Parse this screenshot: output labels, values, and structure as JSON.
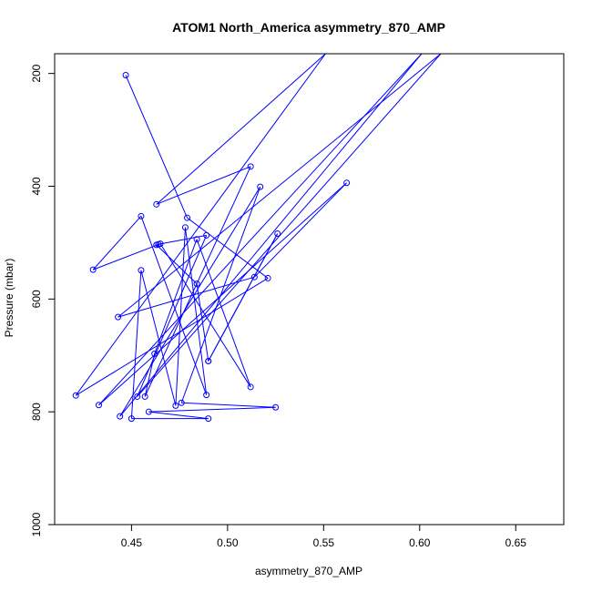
{
  "chart_data": {
    "type": "line",
    "title": "ATOM1 North_America asymmetry_870_AMP",
    "xlabel": "asymmetry_870_AMP",
    "ylabel": "Pressure (mbar)",
    "xlim": [
      0.41,
      0.675
    ],
    "ylim": [
      1000,
      165
    ],
    "y_inverted": true,
    "grid": false,
    "xticks": [
      0.45,
      0.5,
      0.55,
      0.6,
      0.65
    ],
    "xtick_labels": [
      "0.45",
      "0.50",
      "0.55",
      "0.60",
      "0.65"
    ],
    "yticks": [
      200,
      400,
      600,
      800,
      1000
    ],
    "ytick_labels": [
      "200",
      "400",
      "600",
      "800",
      "1000"
    ],
    "series": [
      {
        "color": "#0000ff",
        "marker": "open-circle",
        "points": [
          {
            "x": 0.447,
            "y": 203
          },
          {
            "x": 0.479,
            "y": 456
          },
          {
            "x": 0.521,
            "y": 563
          },
          {
            "x": 0.421,
            "y": 771
          },
          {
            "x": 0.551,
            "y": 165
          },
          {
            "x": 0.463,
            "y": 432
          },
          {
            "x": 0.512,
            "y": 365
          },
          {
            "x": 0.457,
            "y": 773
          },
          {
            "x": 0.462,
            "y": 697
          },
          {
            "x": 0.484,
            "y": 494
          },
          {
            "x": 0.512,
            "y": 756
          },
          {
            "x": 0.465,
            "y": 502
          },
          {
            "x": 0.43,
            "y": 548
          },
          {
            "x": 0.455,
            "y": 453
          },
          {
            "x": 0.489,
            "y": 770
          },
          {
            "x": 0.478,
            "y": 473
          },
          {
            "x": 0.473,
            "y": 789
          },
          {
            "x": 0.455,
            "y": 549
          },
          {
            "x": 0.45,
            "y": 812
          },
          {
            "x": 0.49,
            "y": 812
          },
          {
            "x": 0.459,
            "y": 800
          },
          {
            "x": 0.525,
            "y": 792
          },
          {
            "x": 0.476,
            "y": 784
          },
          {
            "x": 0.517,
            "y": 401
          },
          {
            "x": 0.444,
            "y": 808
          },
          {
            "x": 0.601,
            "y": 165
          },
          {
            "x": 0.433,
            "y": 788
          },
          {
            "x": 0.562,
            "y": 394
          },
          {
            "x": 0.514,
            "y": 561
          },
          {
            "x": 0.443,
            "y": 632
          },
          {
            "x": 0.611,
            "y": 165
          },
          {
            "x": 0.453,
            "y": 773
          },
          {
            "x": 0.489,
            "y": 487
          },
          {
            "x": 0.464,
            "y": 503
          },
          {
            "x": 0.463,
            "y": 504
          },
          {
            "x": 0.484,
            "y": 573
          },
          {
            "x": 0.49,
            "y": 710
          },
          {
            "x": 0.526,
            "y": 484
          },
          {
            "x": 0.49,
            "y": 710
          }
        ]
      }
    ]
  }
}
